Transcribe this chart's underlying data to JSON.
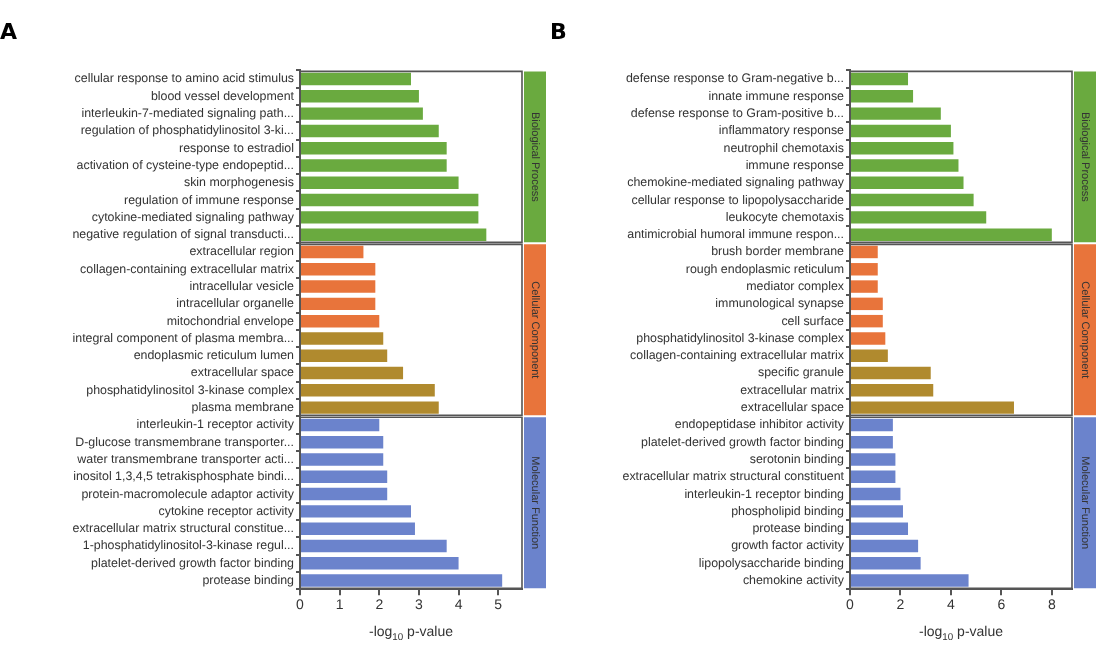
{
  "chart_data": [
    {
      "type": "bar",
      "title": "A",
      "orientation": "horizontal",
      "xlabel": "-log$_{10}$ p-value",
      "grid": false,
      "categories": [
        "cellular response to amino acid stimulus",
        "blood vessel development",
        "interleukin-7-mediated signaling path...",
        "regulation of phosphatidylinositol 3-ki...",
        "response to estradiol",
        "activation of cysteine-type endopeptid...",
        "skin morphogenesis",
        "regulation of immune response",
        "cytokine-mediated signaling pathway",
        "negative regulation of signal transducti...",
        "extracellular region",
        "collagen-containing extracellular matrix",
        "intracellular vesicle",
        "intracellular organelle",
        "mitochondrial envelope",
        "integral component of plasma membra...",
        "endoplasmic reticulum lumen",
        "extracellular space",
        "phosphatidylinositol 3-kinase complex",
        "plasma membrane",
        "interleukin-1 receptor activity",
        "D-glucose transmembrane transporter...",
        "water transmembrane transporter acti...",
        "inositol 1,3,4,5 tetrakisphosphate bindi...",
        "protein-macromolecule adaptor activity",
        "cytokine receptor activity",
        "extracellular matrix structural constitue...",
        "1-phosphatidylinositol-3-kinase regul...",
        "platelet-derived growth factor binding",
        "protease binding"
      ],
      "series": [
        {
          "name": "Biological Process",
          "color": "#6aaa3f",
          "values": [
            2.8,
            3.0,
            3.1,
            3.5,
            3.7,
            3.7,
            4.0,
            4.5,
            4.5,
            4.7,
            null,
            null,
            null,
            null,
            null,
            null,
            null,
            null,
            null,
            null,
            null,
            null,
            null,
            null,
            null,
            null,
            null,
            null,
            null,
            null
          ]
        },
        {
          "name": "Cellular Component",
          "color": "#e8743b",
          "colors": [
            null,
            null,
            null,
            null,
            null,
            null,
            null,
            null,
            null,
            null,
            "#e8743b",
            "#e8743b",
            "#e8743b",
            "#e8743b",
            "#e8743b",
            "#b08a2e",
            "#b08a2e",
            "#b08a2e",
            "#b08a2e",
            "#b08a2e",
            null,
            null,
            null,
            null,
            null,
            null,
            null,
            null,
            null,
            null
          ],
          "values": [
            null,
            null,
            null,
            null,
            null,
            null,
            null,
            null,
            null,
            null,
            1.6,
            1.9,
            1.9,
            1.9,
            2.0,
            2.1,
            2.2,
            2.6,
            3.4,
            3.5,
            null,
            null,
            null,
            null,
            null,
            null,
            null,
            null,
            null,
            null
          ]
        },
        {
          "name": "Molecular Function",
          "color": "#6b83cc",
          "values": [
            null,
            null,
            null,
            null,
            null,
            null,
            null,
            null,
            null,
            null,
            null,
            null,
            null,
            null,
            null,
            null,
            null,
            null,
            null,
            null,
            2.0,
            2.1,
            2.1,
            2.2,
            2.2,
            2.8,
            2.9,
            3.7,
            4.0,
            5.1
          ]
        }
      ],
      "xlim": [
        0,
        5.6
      ],
      "xticks": [
        0,
        1,
        2,
        3,
        4,
        5
      ]
    },
    {
      "type": "bar",
      "title": "B",
      "orientation": "horizontal",
      "xlabel": "-log$_{10}$ p-value",
      "grid": false,
      "categories": [
        "defense response to Gram-negative b...",
        "innate immune response",
        "defense response to Gram-positive b...",
        "inflammatory response",
        "neutrophil chemotaxis",
        "immune response",
        "chemokine-mediated signaling pathway",
        "cellular response to lipopolysaccharide",
        "leukocyte chemotaxis",
        "antimicrobial humoral immune respon...",
        "brush border membrane",
        "rough endoplasmic reticulum",
        "mediator complex",
        "immunological synapse",
        "cell surface",
        "phosphatidylinositol 3-kinase complex",
        "collagen-containing extracellular matrix",
        "specific granule",
        "extracellular matrix",
        "extracellular space",
        "endopeptidase inhibitor activity",
        "platelet-derived growth factor binding",
        "serotonin binding",
        "extracellular matrix structural constituent",
        "interleukin-1 receptor binding",
        "phospholipid binding",
        "protease binding",
        "growth factor activity",
        "lipopolysaccharide binding",
        "chemokine activity"
      ],
      "series": [
        {
          "name": "Biological Process",
          "color": "#6aaa3f",
          "values": [
            2.3,
            2.5,
            3.6,
            4.0,
            4.1,
            4.3,
            4.5,
            4.9,
            5.4,
            8.0,
            null,
            null,
            null,
            null,
            null,
            null,
            null,
            null,
            null,
            null,
            null,
            null,
            null,
            null,
            null,
            null,
            null,
            null,
            null,
            null
          ]
        },
        {
          "name": "Cellular Component",
          "color": "#e8743b",
          "colors": [
            null,
            null,
            null,
            null,
            null,
            null,
            null,
            null,
            null,
            null,
            "#e8743b",
            "#e8743b",
            "#e8743b",
            "#e8743b",
            "#e8743b",
            "#e8743b",
            "#b08a2e",
            "#b08a2e",
            "#b08a2e",
            "#b08a2e",
            null,
            null,
            null,
            null,
            null,
            null,
            null,
            null,
            null,
            null
          ],
          "values": [
            null,
            null,
            null,
            null,
            null,
            null,
            null,
            null,
            null,
            null,
            1.1,
            1.1,
            1.1,
            1.3,
            1.3,
            1.4,
            1.5,
            3.2,
            3.3,
            6.5,
            null,
            null,
            null,
            null,
            null,
            null,
            null,
            null,
            null,
            null
          ]
        },
        {
          "name": "Molecular Function",
          "color": "#6b83cc",
          "values": [
            null,
            null,
            null,
            null,
            null,
            null,
            null,
            null,
            null,
            null,
            null,
            null,
            null,
            null,
            null,
            null,
            null,
            null,
            null,
            null,
            1.7,
            1.7,
            1.8,
            1.8,
            2.0,
            2.1,
            2.3,
            2.7,
            2.8,
            4.7
          ]
        }
      ],
      "xlim": [
        0,
        8.8
      ],
      "xticks": [
        0,
        2,
        4,
        6,
        8
      ]
    }
  ]
}
